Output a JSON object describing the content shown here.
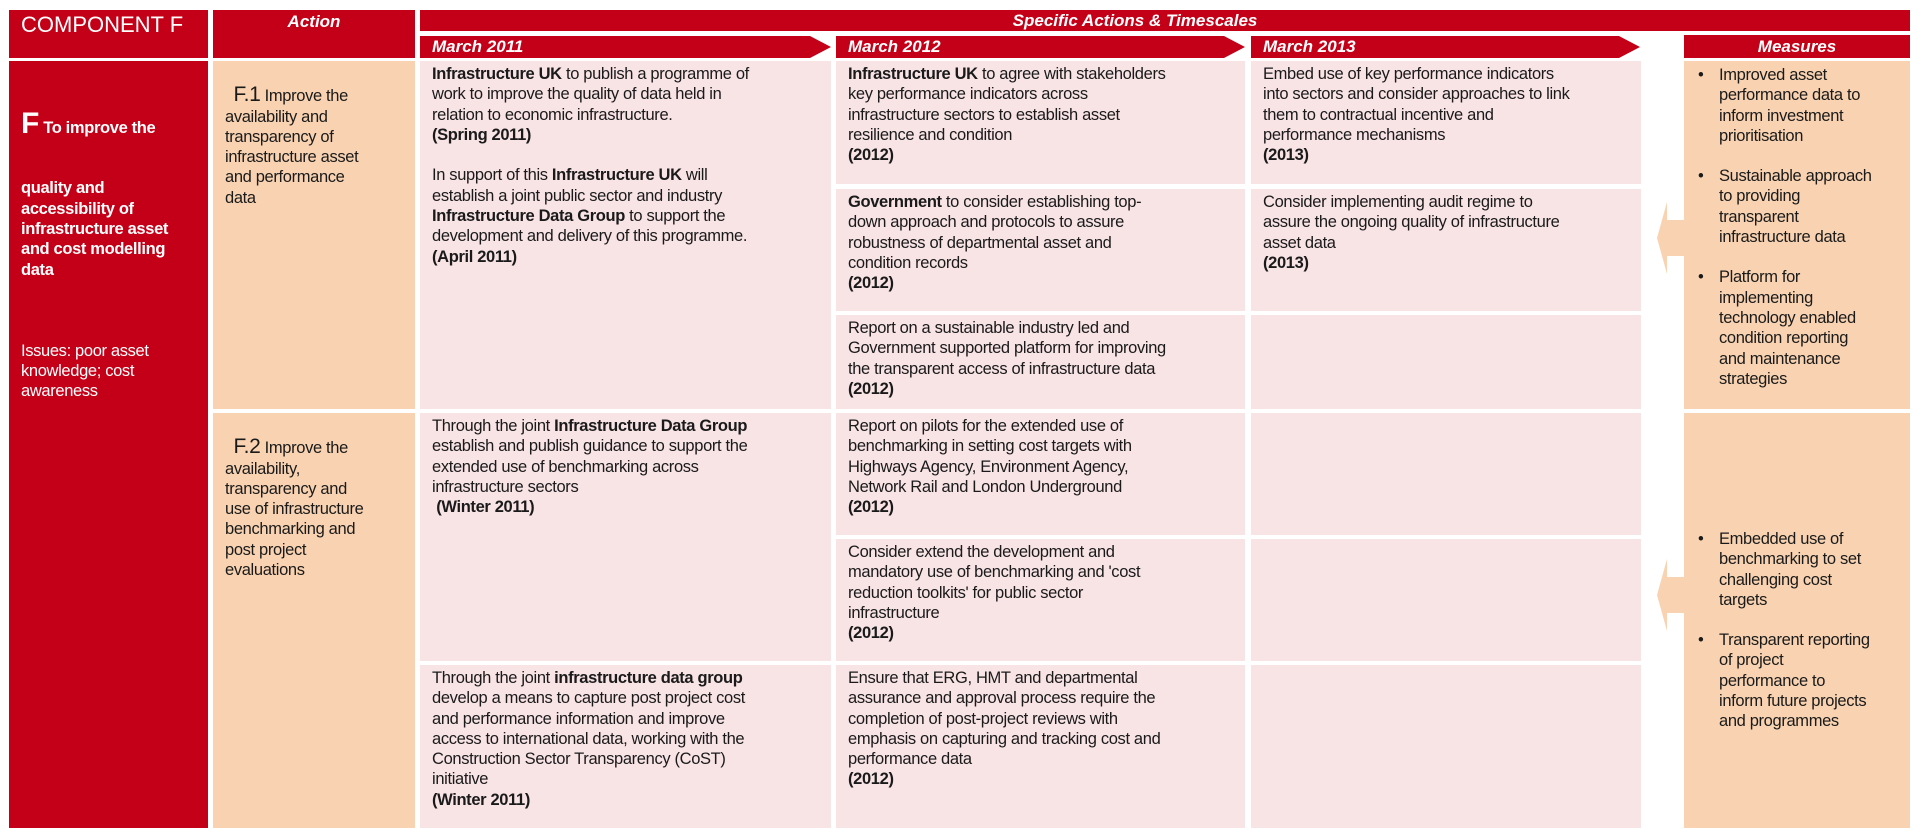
{
  "component": {
    "header": "COMPONENT F",
    "letter": "F",
    "title_first_line": "To improve the",
    "title_rest": "quality and\naccessibility of\ninfrastructure asset\nand cost modelling\ndata",
    "issues": "Issues: poor asset\nknowledge; cost\nawareness"
  },
  "action": {
    "header": "Action",
    "items": [
      {
        "code": "F.1",
        "text": " Improve the\navailability and\ntransparency of\ninfrastructure asset\nand performance\ndata"
      },
      {
        "code": "F.2",
        "text": " Improve the\navailability,\ntransparency and\nuse of infrastructure\nbenchmarking and\npost project\nevaluations"
      }
    ]
  },
  "timescales": {
    "header": "Specific Actions & Timescales",
    "columns": [
      "March 2011",
      "March 2012",
      "March 2013"
    ]
  },
  "cells": [
    {
      "segs": [
        {
          "t": "Infrastructure UK",
          "b": true
        },
        {
          "t": " to publish a programme of\nwork to improve the quality of data held in\nrelation to economic infrastructure.\n"
        },
        {
          "t": "(Spring 2011)",
          "b": true
        },
        {
          "t": "\n\nIn support of this "
        },
        {
          "t": "Infrastructure UK",
          "b": true
        },
        {
          "t": " will\nestablish a joint public sector and industry\n"
        },
        {
          "t": "Infrastructure Data Group",
          "b": true
        },
        {
          "t": " to support the\ndevelopment and delivery of this programme.\n"
        },
        {
          "t": "(April 2011)",
          "b": true
        }
      ]
    },
    {
      "segs": [
        {
          "t": "Through the joint "
        },
        {
          "t": "Infrastructure Data Group",
          "b": true
        },
        {
          "t": "\nestablish and publish guidance to support the\nextended use of benchmarking across\ninfrastructure sectors\n "
        },
        {
          "t": "(Winter 2011)",
          "b": true
        }
      ]
    },
    {
      "segs": [
        {
          "t": "Through the joint "
        },
        {
          "t": "infrastructure data group",
          "b": true
        },
        {
          "t": "\ndevelop a means to capture post project cost\nand performance information and improve\naccess to international data, working with the\nConstruction Sector Transparency (CoST)\ninitiative\n"
        },
        {
          "t": "(Winter 2011)",
          "b": true
        }
      ]
    },
    {
      "segs": [
        {
          "t": "Infrastructure UK",
          "b": true
        },
        {
          "t": " to agree with stakeholders\nkey performance indicators across\ninfrastructure sectors to establish asset\nresilience and condition\n"
        },
        {
          "t": "(2012)",
          "b": true
        }
      ]
    },
    {
      "segs": [
        {
          "t": "Government",
          "b": true
        },
        {
          "t": " to consider establishing top-\ndown approach and protocols to assure\nrobustness of departmental asset and\ncondition records\n"
        },
        {
          "t": "(2012)",
          "b": true
        }
      ]
    },
    {
      "segs": [
        {
          "t": "Report on a sustainable industry led and\nGovernment supported platform for improving\nthe transparent access of infrastructure data\n"
        },
        {
          "t": "(2012)",
          "b": true
        }
      ]
    },
    {
      "segs": [
        {
          "t": "Report on pilots for the extended use of\nbenchmarking in setting cost targets with\nHighways Agency, Environment Agency,\nNetwork Rail and London Underground\n"
        },
        {
          "t": "(2012)",
          "b": true
        }
      ]
    },
    {
      "segs": [
        {
          "t": "Consider extend the development and\nmandatory use of benchmarking and 'cost\nreduction toolkits' for public sector\ninfrastructure\n"
        },
        {
          "t": "(2012)",
          "b": true
        }
      ]
    },
    {
      "segs": [
        {
          "t": "Ensure that ERG, HMT and departmental\nassurance and approval process require the\ncompletion of post-project reviews with\nemphasis on capturing and tracking cost and\nperformance data\n"
        },
        {
          "t": "(2012)",
          "b": true
        }
      ]
    },
    {
      "segs": [
        {
          "t": "Embed use of key performance indicators\ninto sectors and consider approaches to link\nthem to contractual incentive and\nperformance mechanisms\n"
        },
        {
          "t": "(2013)",
          "b": true
        }
      ]
    },
    {
      "segs": [
        {
          "t": "Consider implementing audit regime to\nassure the ongoing quality of infrastructure\nasset data\n"
        },
        {
          "t": "(2013)",
          "b": true
        }
      ]
    },
    {
      "segs": []
    },
    {
      "segs": []
    },
    {
      "segs": []
    },
    {
      "segs": []
    }
  ],
  "measures": {
    "header": "Measures",
    "bullet": "•",
    "groups": [
      [
        "Improved asset\nperformance data to\ninform investment\nprioritisation",
        "Sustainable approach\nto providing\ntransparent\ninfrastructure data",
        "Platform for\nimplementing\ntechnology enabled\ncondition reporting\nand maintenance\nstrategies"
      ],
      [
        "Embedded use of\nbenchmarking to set\nchallenging cost\ntargets",
        "Transparent reporting\nof project\nperformance to\ninform future projects\nand programmes"
      ]
    ]
  },
  "colors": {
    "brand_red": "#c40018",
    "cell_pink": "#f8e3e5",
    "cell_peach": "#f9d3b1"
  }
}
